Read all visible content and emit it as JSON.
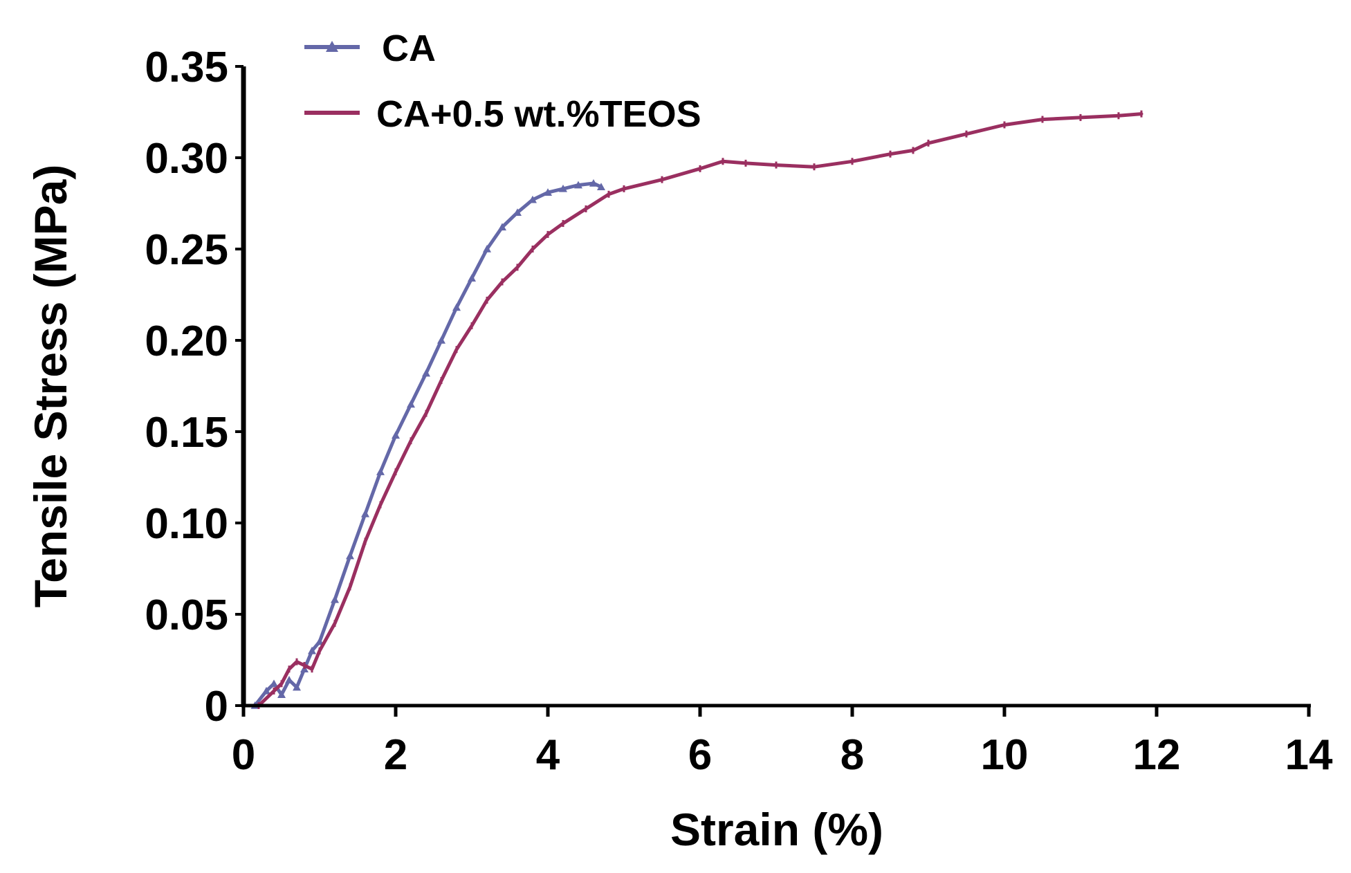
{
  "chart_data": {
    "type": "line",
    "title": "",
    "xlabel": "Strain (%)",
    "ylabel": "Tensile Stress (MPa)",
    "xlim": [
      0,
      14
    ],
    "ylim": [
      0,
      0.35
    ],
    "x_ticks": [
      "0",
      "2",
      "4",
      "6",
      "8",
      "10",
      "12",
      "14"
    ],
    "y_ticks": [
      "0",
      "0.05",
      "0.10",
      "0.15",
      "0.20",
      "0.25",
      "0.30",
      "0.35"
    ],
    "grid": false,
    "legend_position": "top-left",
    "series": [
      {
        "name": "CA",
        "color": "#6468a8",
        "marker": "triangle",
        "x": [
          0.15,
          0.3,
          0.4,
          0.5,
          0.6,
          0.7,
          0.8,
          0.9,
          1.0,
          1.2,
          1.4,
          1.6,
          1.8,
          2.0,
          2.2,
          2.4,
          2.6,
          2.8,
          3.0,
          3.2,
          3.4,
          3.6,
          3.8,
          4.0,
          4.2,
          4.4,
          4.6,
          4.7
        ],
        "y": [
          0.0,
          0.008,
          0.012,
          0.006,
          0.014,
          0.01,
          0.02,
          0.03,
          0.035,
          0.058,
          0.082,
          0.105,
          0.128,
          0.148,
          0.165,
          0.182,
          0.2,
          0.218,
          0.234,
          0.25,
          0.262,
          0.27,
          0.277,
          0.281,
          0.283,
          0.285,
          0.286,
          0.284
        ]
      },
      {
        "name": "CA+0.5 wt.%TEOS",
        "color": "#9a2f60",
        "marker": "line",
        "x": [
          0.2,
          0.4,
          0.5,
          0.6,
          0.7,
          0.8,
          0.9,
          1.0,
          1.2,
          1.4,
          1.6,
          1.8,
          2.0,
          2.2,
          2.4,
          2.6,
          2.8,
          3.0,
          3.2,
          3.4,
          3.6,
          3.8,
          4.0,
          4.2,
          4.5,
          4.8,
          5.0,
          5.5,
          6.0,
          6.3,
          6.6,
          7.0,
          7.5,
          8.0,
          8.5,
          8.8,
          9.0,
          9.5,
          10.0,
          10.5,
          11.0,
          11.5,
          11.8
        ],
        "y": [
          0.0,
          0.008,
          0.012,
          0.02,
          0.024,
          0.022,
          0.02,
          0.03,
          0.045,
          0.065,
          0.09,
          0.11,
          0.128,
          0.145,
          0.16,
          0.178,
          0.195,
          0.208,
          0.222,
          0.232,
          0.24,
          0.25,
          0.258,
          0.264,
          0.272,
          0.28,
          0.283,
          0.288,
          0.294,
          0.298,
          0.297,
          0.296,
          0.295,
          0.298,
          0.302,
          0.304,
          0.308,
          0.313,
          0.318,
          0.321,
          0.322,
          0.323,
          0.324
        ]
      }
    ]
  }
}
